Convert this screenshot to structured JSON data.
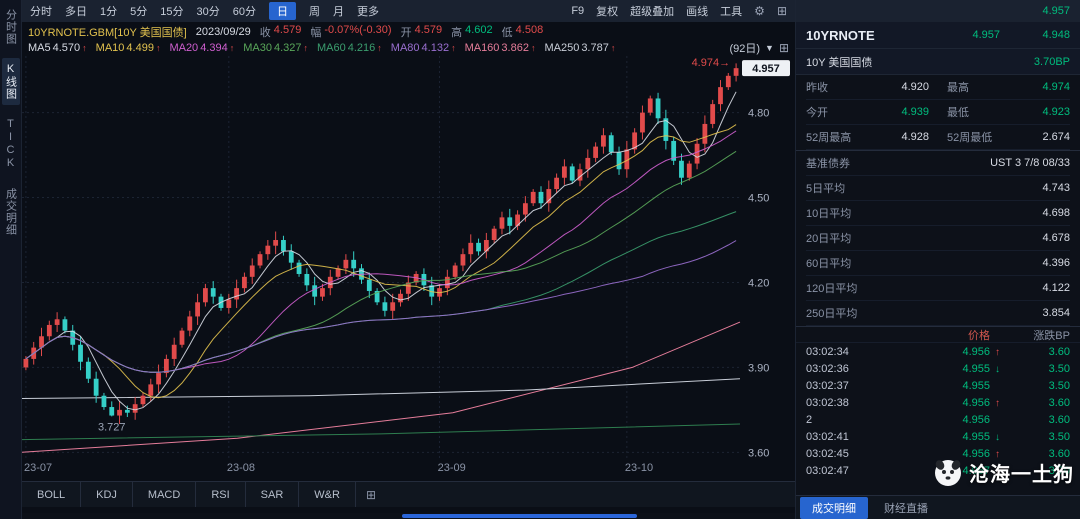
{
  "colors": {
    "red": "#e14b4b",
    "green": "#00bd7e",
    "yellow": "#e2c24e",
    "accent": "#2765cf"
  },
  "topbar": {
    "periods": [
      "分时",
      "多日",
      "1分",
      "5分",
      "15分",
      "30分",
      "60分",
      "日",
      "周",
      "月",
      "更多"
    ],
    "selected_period": "日",
    "right_items": [
      "F9",
      "复权",
      "超级叠加",
      "画线",
      "工具"
    ]
  },
  "sidebar": {
    "items": [
      {
        "label": "分时图",
        "selected": false
      },
      {
        "label": "K线图",
        "selected": true
      },
      {
        "label": "TICK",
        "selected": false
      },
      {
        "label": "成交明细",
        "selected": false
      }
    ]
  },
  "chart_header": {
    "symbol": "10YRNOTE.GBM[10Y 美国国债]",
    "date": "2023/09/29",
    "fields": [
      {
        "label": "收",
        "value": "4.579",
        "color": "#e14b4b"
      },
      {
        "label": "幅",
        "value": "-0.07%(-0.30)",
        "color": "#e14b4b"
      },
      {
        "label": "开",
        "value": "4.579",
        "color": "#e14b4b"
      },
      {
        "label": "高",
        "value": "4.602",
        "color": "#00bd7e"
      },
      {
        "label": "低",
        "value": "4.508",
        "color": "#e14b4b"
      }
    ],
    "range_label": "(92日)"
  },
  "ma_row": [
    {
      "label": "MA5",
      "value": "4.570",
      "arrow": "↑",
      "color": "#d7dbe4"
    },
    {
      "label": "MA10",
      "value": "4.499",
      "arrow": "↑",
      "color": "#e2c24e"
    },
    {
      "label": "MA20",
      "value": "4.394",
      "arrow": "↑",
      "color": "#cf5fcf"
    },
    {
      "label": "MA30",
      "value": "4.327",
      "arrow": "↑",
      "color": "#5aa85a"
    },
    {
      "label": "MA60",
      "value": "4.216",
      "arrow": "↑",
      "color": "#3b9e6e"
    },
    {
      "label": "MA80",
      "value": "4.132",
      "arrow": "↑",
      "color": "#9a6fd0"
    },
    {
      "label": "MA160",
      "value": "3.862",
      "arrow": "↑",
      "color": "#e57d9a"
    },
    {
      "label": "MA250",
      "value": "3.787",
      "arrow": "↑",
      "color": "#c9ced8"
    }
  ],
  "chart_data": {
    "type": "candlestick",
    "title": "10YRNOTE.GBM 10Y 美国国债 日K",
    "y_ticks": [
      4.8,
      4.5,
      4.2,
      3.9,
      3.6
    ],
    "y_range": [
      3.58,
      5.0
    ],
    "x_labels": [
      "23-07",
      "23-08",
      "23-09",
      "23-10"
    ],
    "month_start_indices": [
      0,
      26,
      53,
      77
    ],
    "first_open": 3.9,
    "closes": [
      3.93,
      3.97,
      4.01,
      4.05,
      4.07,
      4.03,
      3.98,
      3.92,
      3.86,
      3.8,
      3.76,
      3.73,
      3.75,
      3.74,
      3.77,
      3.8,
      3.84,
      3.88,
      3.93,
      3.98,
      4.03,
      4.08,
      4.13,
      4.18,
      4.15,
      4.11,
      4.14,
      4.18,
      4.22,
      4.26,
      4.3,
      4.33,
      4.35,
      4.31,
      4.27,
      4.23,
      4.19,
      4.15,
      4.18,
      4.22,
      4.25,
      4.28,
      4.25,
      4.21,
      4.17,
      4.13,
      4.1,
      4.13,
      4.16,
      4.2,
      4.23,
      4.19,
      4.15,
      4.18,
      4.22,
      4.26,
      4.3,
      4.34,
      4.31,
      4.35,
      4.39,
      4.43,
      4.4,
      4.44,
      4.48,
      4.52,
      4.48,
      4.53,
      4.57,
      4.61,
      4.56,
      4.6,
      4.64,
      4.68,
      4.72,
      4.66,
      4.6,
      4.67,
      4.73,
      4.8,
      4.85,
      4.78,
      4.7,
      4.63,
      4.57,
      4.62,
      4.69,
      4.76,
      4.83,
      4.89,
      4.93,
      4.957
    ],
    "low_annotation": {
      "index": 11,
      "value": 3.727,
      "label": "3.727"
    },
    "high_annotation": {
      "index": 91,
      "value": 4.974,
      "label": "4.974"
    },
    "last_price": 4.957,
    "up_color": "#e14b4b",
    "down_color": "#35d0c8",
    "ma_series": [
      {
        "name": "MA5",
        "period": 5,
        "color": "#d7dbe4"
      },
      {
        "name": "MA10",
        "period": 10,
        "color": "#e2c24e"
      },
      {
        "name": "MA20",
        "period": 20,
        "color": "#cf5fcf"
      },
      {
        "name": "MA30",
        "period": 30,
        "color": "#5aa85a"
      },
      {
        "name": "MA60",
        "period": 60,
        "color": "#3b9e6e"
      },
      {
        "name": "MA80",
        "period": 80,
        "color": "#9a6fd0"
      }
    ],
    "overlays": [
      {
        "name": "MA160",
        "color": "#e57d9a",
        "points": [
          [
            0,
            3.6
          ],
          [
            0.3,
            3.65
          ],
          [
            0.6,
            3.74
          ],
          [
            0.85,
            3.9
          ],
          [
            1,
            4.06
          ]
        ]
      },
      {
        "name": "MA250",
        "color": "#c9ced8",
        "points": [
          [
            0,
            3.79
          ],
          [
            0.4,
            3.8
          ],
          [
            0.7,
            3.82
          ],
          [
            1,
            3.86
          ]
        ]
      },
      {
        "name": "long-ma",
        "color": "#2e7d4f",
        "points": [
          [
            0,
            3.645
          ],
          [
            0.5,
            3.665
          ],
          [
            1,
            3.7
          ]
        ]
      }
    ]
  },
  "indicator_tabs": [
    "BOLL",
    "KDJ",
    "MACD",
    "RSI",
    "SAR",
    "W&R"
  ],
  "right_panel": {
    "top_price": "4.957",
    "symbol": "10YRNOTE",
    "price1": "4.957",
    "price2": "4.948",
    "name": "10Y 美国国债",
    "change_bp": "3.70BP",
    "stats": [
      {
        "label": "昨收",
        "value": "4.920",
        "color": "#d7dbe4"
      },
      {
        "label": "最高",
        "value": "4.974",
        "color": "#00bd7e"
      },
      {
        "label": "今开",
        "value": "4.939",
        "color": "#00bd7e"
      },
      {
        "label": "最低",
        "value": "4.923",
        "color": "#00bd7e"
      },
      {
        "label": "52周最高",
        "value": "4.928",
        "color": "#d7dbe4"
      },
      {
        "label": "52周最低",
        "value": "2.674",
        "color": "#d7dbe4"
      }
    ],
    "details": [
      {
        "label": "基准债券",
        "value": "UST 3 7/8 08/33"
      },
      {
        "label": "5日平均",
        "value": "4.743"
      },
      {
        "label": "10日平均",
        "value": "4.698"
      },
      {
        "label": "20日平均",
        "value": "4.678"
      },
      {
        "label": "60日平均",
        "value": "4.396"
      },
      {
        "label": "120日平均",
        "value": "4.122"
      },
      {
        "label": "250日平均",
        "value": "3.854"
      }
    ],
    "tick_header": {
      "price": "价格",
      "bp": "涨跌BP"
    },
    "ticks": [
      {
        "time": "03:02:34",
        "price": "4.956",
        "arrow": "↑",
        "arrow_color": "#e14b4b",
        "bp": "3.60"
      },
      {
        "time": "03:02:36",
        "price": "4.955",
        "arrow": "↓",
        "arrow_color": "#00bd7e",
        "bp": "3.50"
      },
      {
        "time": "03:02:37",
        "price": "4.955",
        "arrow": "",
        "arrow_color": "",
        "bp": "3.50"
      },
      {
        "time": "03:02:38",
        "price": "4.956",
        "arrow": "↑",
        "arrow_color": "#e14b4b",
        "bp": "3.60"
      },
      {
        "time": "2",
        "price": "4.956",
        "arrow": "",
        "arrow_color": "",
        "bp": "3.60"
      },
      {
        "time": "03:02:41",
        "price": "4.955",
        "arrow": "↓",
        "arrow_color": "#00bd7e",
        "bp": "3.50"
      },
      {
        "time": "03:02:45",
        "price": "4.956",
        "arrow": "↑",
        "arrow_color": "#e14b4b",
        "bp": "3.60"
      },
      {
        "time": "03:02:47",
        "price": "4.957",
        "arrow": "↑",
        "arrow_color": "#e14b4b",
        "bp": "3.70"
      }
    ],
    "tabs": [
      {
        "label": "成交明细",
        "selected": true
      },
      {
        "label": "财经直播",
        "selected": false
      }
    ]
  },
  "watermark": {
    "text": "沧海一土狗"
  }
}
